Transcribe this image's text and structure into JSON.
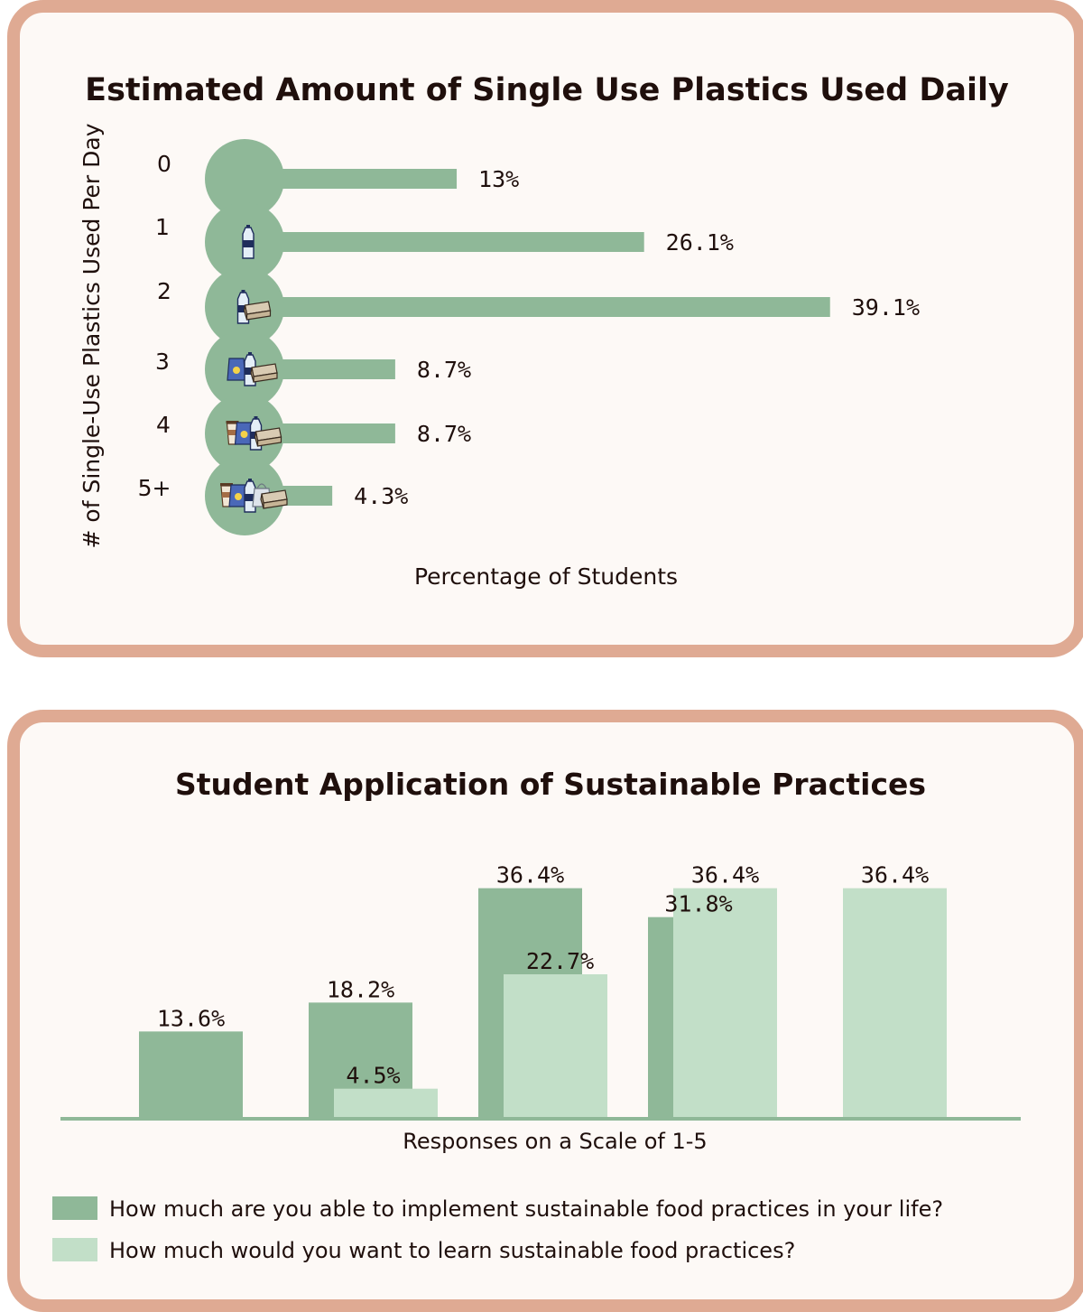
{
  "colors": {
    "card_border": "#dfaa93",
    "card_bg": "#fdf9f6",
    "bar_dark": "#8fb898",
    "bar_light": "#c2dfc8",
    "text": "#1f0f0c"
  },
  "charts": [
    {
      "title": "Estimated Amount of Single Use Plastics Used Daily",
      "ylabel": "# of Single-Use Plastics Used Per Day",
      "xlabel": "Percentage of Students"
    },
    {
      "title": "Student Application of Sustainable Practices",
      "xlabel": "Responses on a Scale of 1-5"
    }
  ],
  "chart_data": [
    {
      "type": "bar",
      "orientation": "horizontal",
      "title": "Estimated Amount of Single Use Plastics Used Daily",
      "xlabel": "Percentage of Students",
      "ylabel": "# of Single-Use Plastics Used Per Day",
      "categories": [
        "0",
        "1",
        "2",
        "3",
        "4",
        "5+"
      ],
      "values": [
        13,
        26.1,
        39.1,
        8.7,
        8.7,
        4.3
      ],
      "labels": [
        "13%",
        "26.1%",
        "39.1%",
        "8.7%",
        "8.7%",
        "4.3%"
      ],
      "icons": [
        [],
        [
          "plastic-bottle-icon"
        ],
        [
          "plastic-bottle-icon",
          "takeout-container-icon"
        ],
        [
          "chip-bag-icon",
          "plastic-bottle-icon",
          "takeout-container-icon"
        ],
        [
          "coffee-cup-icon",
          "chip-bag-icon",
          "plastic-bottle-icon",
          "takeout-container-icon"
        ],
        [
          "coffee-cup-icon",
          "chip-bag-icon",
          "plastic-bottle-icon",
          "plastic-bag-icon",
          "takeout-container-icon"
        ]
      ],
      "xlim": [
        0,
        40
      ],
      "grid": false
    },
    {
      "type": "bar",
      "orientation": "vertical",
      "title": "Student Application of Sustainable Practices",
      "xlabel": "Responses on a Scale of 1-5",
      "categories": [
        "1",
        "2",
        "3",
        "4",
        "5"
      ],
      "show_category_labels": false,
      "series": [
        {
          "name": "How much are you able to implement sustainable food practices in your life?",
          "color": "#8fb898",
          "values": [
            13.6,
            18.2,
            36.4,
            31.8,
            0
          ],
          "labels": [
            "13.6%",
            "18.2%",
            "36.4%",
            "31.8%",
            ""
          ]
        },
        {
          "name": "How much would you want to learn sustainable food practices?",
          "color": "#c2dfc8",
          "values": [
            0,
            4.5,
            22.7,
            36.4,
            36.4
          ],
          "labels": [
            "",
            "4.5%",
            "22.7%",
            "36.4%",
            "36.4%"
          ]
        }
      ],
      "ylim": [
        0,
        40
      ],
      "legend": "bottom",
      "grid": false
    }
  ]
}
